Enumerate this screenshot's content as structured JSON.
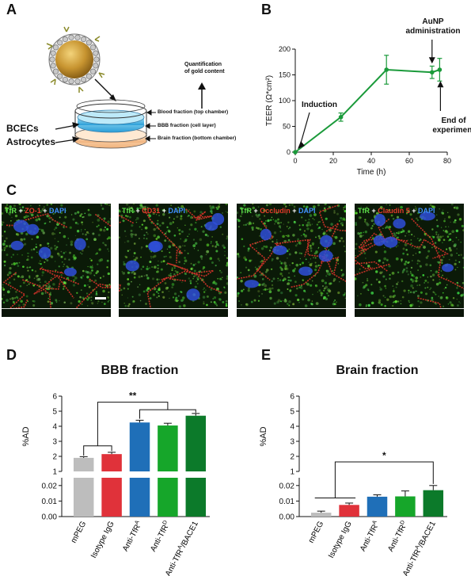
{
  "panels": {
    "a": "A",
    "b": "B",
    "c": "C",
    "d": "D",
    "e": "E"
  },
  "panel_a": {
    "quantification": [
      "Quantification",
      "of gold content"
    ],
    "blood_fraction": "Blood fraction (top chamber)",
    "bbb_fraction": "BBB fraction (cell layer)",
    "brain_fraction": "Brain fraction (bottom chamber)",
    "bcecs": "BCECs",
    "astrocytes": "Astrocytes"
  },
  "panel_c": {
    "images": [
      {
        "parts": [
          [
            "TfR",
            "g"
          ],
          [
            " + ",
            "w"
          ],
          [
            "ZO-1",
            "r"
          ],
          [
            " + ",
            "w"
          ],
          [
            "DAPI",
            "b"
          ]
        ]
      },
      {
        "parts": [
          [
            "TfR",
            "g"
          ],
          [
            " + ",
            "w"
          ],
          [
            "CD31",
            "r"
          ],
          [
            " + ",
            "w"
          ],
          [
            "DAPI",
            "b"
          ]
        ]
      },
      {
        "parts": [
          [
            "TfR",
            "g"
          ],
          [
            " + ",
            "w"
          ],
          [
            "Occludin",
            "r"
          ],
          [
            " + ",
            "w"
          ],
          [
            "DAPI",
            "b"
          ]
        ]
      },
      {
        "parts": [
          [
            "TfR",
            "g"
          ],
          [
            " + ",
            "w"
          ],
          [
            "Claudin 5",
            "r"
          ],
          [
            " + ",
            "w"
          ],
          [
            "DAPI",
            "b"
          ]
        ]
      }
    ]
  },
  "colors": {
    "mpeg": "#bdbdbd",
    "isotype": "#e0323a",
    "tfra": "#1f6fb8",
    "tfrd": "#16a62a",
    "bace": "#0c7a2a",
    "teer_line": "#1a9a3a"
  },
  "chart_data": [
    {
      "id": "B",
      "type": "line",
      "x": [
        0,
        24,
        48,
        72,
        76
      ],
      "y": [
        0,
        68,
        160,
        155,
        160
      ],
      "err": [
        0,
        8,
        28,
        12,
        22
      ],
      "xlabel": "Time (h)",
      "ylabel": "TEER (Ω*cm²)",
      "xlim": [
        0,
        80
      ],
      "ylim": [
        0,
        200
      ],
      "xticks": [
        0,
        20,
        40,
        60,
        80
      ],
      "yticks": [
        0,
        50,
        100,
        150,
        200
      ],
      "annotations": [
        {
          "text": [
            "Induction"
          ]
        },
        {
          "text": [
            "AuNP",
            "administration"
          ]
        },
        {
          "text": [
            "End of",
            "experiment"
          ]
        }
      ]
    },
    {
      "id": "D",
      "type": "bar",
      "title": "BBB fraction",
      "ylabel": "%AD",
      "categories": [
        "mPEG",
        "Isotype IgG",
        "Anti-TfR",
        "Anti-TfR",
        "Anti-TfR/BACE1"
      ],
      "category_sup": [
        "",
        "",
        "A",
        "D",
        "A"
      ],
      "values": [
        1.9,
        2.15,
        4.25,
        4.05,
        4.7
      ],
      "err": [
        0.08,
        0.12,
        0.15,
        0.15,
        0.15
      ],
      "upper_ticks": [
        1,
        2,
        3,
        4,
        5,
        6
      ],
      "lower_ticks": [
        0.0,
        0.01,
        0.02
      ],
      "significance": "**"
    },
    {
      "id": "E",
      "type": "bar",
      "title": "Brain fraction",
      "ylabel": "%AD",
      "categories": [
        "mPEG",
        "Isotype IgG",
        "Anti-TfR",
        "Anti-TfR",
        "Anti-TfR/BACE1"
      ],
      "category_sup": [
        "",
        "",
        "A",
        "D",
        "A"
      ],
      "values": [
        0.0025,
        0.0075,
        0.0128,
        0.013,
        0.017
      ],
      "err": [
        0.001,
        0.0012,
        0.0012,
        0.0035,
        0.003
      ],
      "upper_ticks": [
        1,
        2,
        3,
        4,
        5,
        6
      ],
      "lower_ticks": [
        0.0,
        0.01,
        0.02
      ],
      "significance": "*"
    }
  ]
}
